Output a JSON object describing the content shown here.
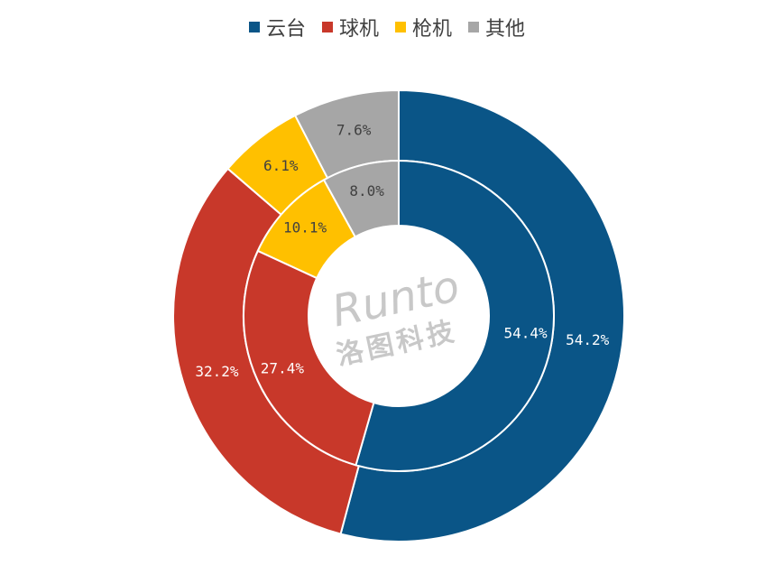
{
  "chart_data": {
    "type": "pie",
    "subtype": "double-ring-donut",
    "legend_position": "top",
    "categories": [
      "云台",
      "球机",
      "枪机",
      "其他"
    ],
    "colors": [
      "#0a5587",
      "#c8382a",
      "#ffc000",
      "#a6a6a6"
    ],
    "label_colors": [
      "#ffffff",
      "#ffffff",
      "#404040",
      "#404040"
    ],
    "series": [
      {
        "ring": "outer",
        "values": [
          54.2,
          32.2,
          6.1,
          7.6
        ],
        "labels": [
          "54.2%",
          "32.2%",
          "6.1%",
          "7.6%"
        ]
      },
      {
        "ring": "inner",
        "values": [
          54.4,
          27.4,
          10.1,
          8.0
        ],
        "labels": [
          "54.4%",
          "27.4%",
          "10.1%",
          "8.0%"
        ]
      }
    ]
  },
  "watermark": {
    "brand": "Runto",
    "name_cn": "洛图科技"
  }
}
